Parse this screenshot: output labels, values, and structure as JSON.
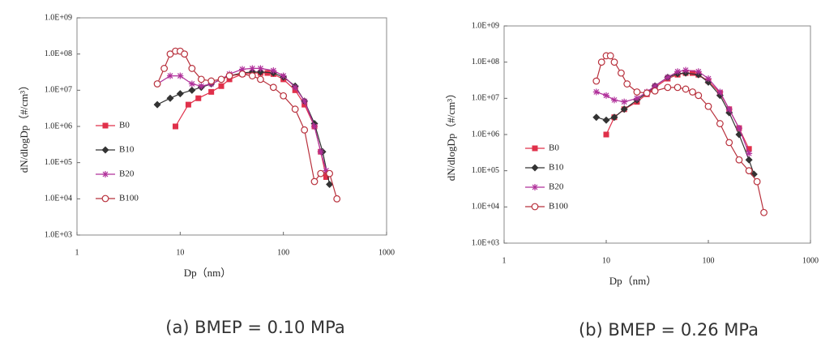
{
  "chart_data": [
    {
      "type": "line",
      "caption": "(a)  BMEP = 0.10 MPa",
      "x_label": "Dp（nm）",
      "y_label": "dN/dlogDp（#/cm³）",
      "log_x": true,
      "log_y": true,
      "xlim": [
        1,
        1000
      ],
      "ylim": [
        1000,
        1000000000
      ],
      "xticks": [
        1,
        10,
        100,
        1000
      ],
      "yticks": [
        {
          "value": 1000,
          "label": "1.0E+03"
        },
        {
          "value": 10000,
          "label": "1.0E+04"
        },
        {
          "value": 100000,
          "label": "1.0E+05"
        },
        {
          "value": 1000000,
          "label": "1.0E+06"
        },
        {
          "value": 10000000,
          "label": "1.0E+07"
        },
        {
          "value": 100000000,
          "label": "1.0E+08"
        },
        {
          "value": 1000000000,
          "label": "1.0E+09"
        }
      ],
      "series": [
        {
          "name": "B0",
          "color": "#e0304a",
          "marker": "square",
          "x": [
            9,
            12,
            15,
            20,
            25,
            30,
            40,
            50,
            60,
            70,
            80,
            100,
            130,
            160,
            200,
            230,
            260
          ],
          "values": [
            1000000,
            4000000,
            6000000,
            9000000,
            13000000,
            20000000,
            28000000,
            30000000,
            30000000,
            30000000,
            28000000,
            20000000,
            10000000,
            4000000,
            1000000,
            200000,
            40000
          ]
        },
        {
          "name": "B10",
          "color": "#333333",
          "marker": "diamond",
          "x": [
            6,
            8,
            10,
            13,
            16,
            20,
            25,
            30,
            40,
            50,
            60,
            80,
            100,
            130,
            160,
            200,
            240,
            280
          ],
          "values": [
            4000000,
            6000000,
            8000000,
            10000000,
            12000000,
            15000000,
            20000000,
            25000000,
            30000000,
            32000000,
            32000000,
            30000000,
            23000000,
            13000000,
            5000000,
            1200000,
            200000,
            25000
          ]
        },
        {
          "name": "B20",
          "color": "#b0309a",
          "marker": "asterisk",
          "x": [
            6,
            8,
            10,
            13,
            16,
            20,
            25,
            30,
            40,
            50,
            60,
            80,
            100,
            130,
            160,
            200,
            230,
            260
          ],
          "values": [
            15000000,
            25000000,
            25000000,
            15000000,
            13000000,
            15000000,
            20000000,
            28000000,
            38000000,
            40000000,
            40000000,
            35000000,
            25000000,
            12000000,
            5000000,
            1000000,
            200000,
            60000
          ]
        },
        {
          "name": "B100",
          "color": "#b8303c",
          "marker": "circle",
          "x": [
            6,
            7,
            8,
            9,
            10,
            11,
            13,
            16,
            20,
            25,
            30,
            40,
            50,
            60,
            80,
            100,
            130,
            160,
            200,
            230,
            280,
            330
          ],
          "values": [
            15000000,
            40000000,
            100000000,
            120000000,
            120000000,
            100000000,
            40000000,
            20000000,
            18000000,
            20000000,
            25000000,
            28000000,
            25000000,
            20000000,
            12000000,
            7000000,
            3000000,
            800000,
            30000,
            50000,
            50000,
            10000
          ]
        }
      ]
    },
    {
      "type": "line",
      "caption": "(b)  BMEP = 0.26 MPa",
      "x_label": "Dp（nm）",
      "y_label": "dN/dlogDp（#/cm³）",
      "log_x": true,
      "log_y": true,
      "xlim": [
        1,
        1000
      ],
      "ylim": [
        1000,
        1000000000
      ],
      "xticks": [
        1,
        10,
        100,
        1000
      ],
      "yticks": [
        {
          "value": 1000,
          "label": "1.0E+03"
        },
        {
          "value": 10000,
          "label": "1.0E+04"
        },
        {
          "value": 100000,
          "label": "1.0E+05"
        },
        {
          "value": 1000000,
          "label": "1.0E+06"
        },
        {
          "value": 10000000,
          "label": "1.0E+07"
        },
        {
          "value": 100000000,
          "label": "1.0E+08"
        },
        {
          "value": 1000000000,
          "label": "1.0E+09"
        }
      ],
      "series": [
        {
          "name": "B0",
          "color": "#e0304a",
          "marker": "square",
          "x": [
            10,
            12,
            15,
            20,
            25,
            30,
            40,
            50,
            60,
            70,
            80,
            100,
            130,
            160,
            200,
            250
          ],
          "values": [
            1000000,
            3000000,
            5000000,
            8000000,
            13000000,
            20000000,
            35000000,
            45000000,
            50000000,
            50000000,
            45000000,
            30000000,
            14000000,
            5000000,
            1500000,
            400000
          ]
        },
        {
          "name": "B10",
          "color": "#333333",
          "marker": "diamond",
          "x": [
            8,
            10,
            12,
            15,
            20,
            25,
            30,
            40,
            50,
            60,
            80,
            100,
            130,
            160,
            200,
            250,
            280
          ],
          "values": [
            3000000,
            2500000,
            3000000,
            5000000,
            9000000,
            14000000,
            22000000,
            38000000,
            48000000,
            50000000,
            45000000,
            28000000,
            12000000,
            4000000,
            1000000,
            200000,
            80000
          ]
        },
        {
          "name": "B20",
          "color": "#b0309a",
          "marker": "asterisk",
          "x": [
            8,
            10,
            12,
            15,
            20,
            25,
            30,
            40,
            50,
            60,
            80,
            100,
            130,
            160,
            200,
            250
          ],
          "values": [
            15000000,
            12000000,
            9000000,
            8000000,
            10000000,
            15000000,
            22000000,
            38000000,
            55000000,
            60000000,
            55000000,
            35000000,
            15000000,
            5000000,
            1500000,
            300000
          ]
        },
        {
          "name": "B100",
          "color": "#b8303c",
          "marker": "circle",
          "x": [
            8,
            9,
            10,
            11,
            12,
            14,
            16,
            20,
            25,
            30,
            40,
            50,
            60,
            70,
            80,
            100,
            130,
            160,
            200,
            250,
            300,
            350
          ],
          "values": [
            30000000,
            100000000,
            150000000,
            150000000,
            100000000,
            50000000,
            25000000,
            15000000,
            14000000,
            16000000,
            20000000,
            20000000,
            18000000,
            15000000,
            12000000,
            6000000,
            2000000,
            600000,
            200000,
            100000,
            50000,
            7000
          ]
        }
      ]
    }
  ]
}
